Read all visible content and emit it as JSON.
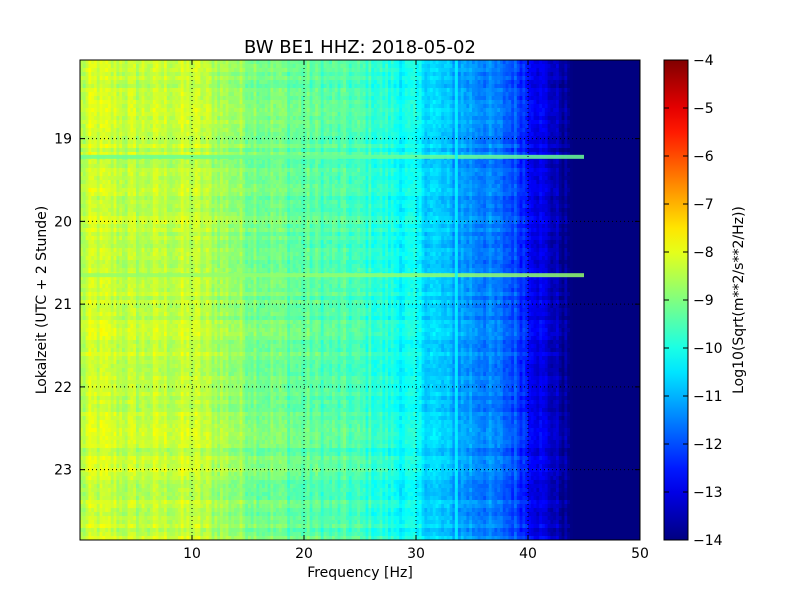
{
  "chart_data": {
    "type": "heatmap",
    "title": "BW BE1 HHZ: 2018-05-02",
    "xlabel": "Frequency [Hz]",
    "ylabel": "Lokalzeit (UTC + 2 Stunde)",
    "xlim": [
      0,
      50
    ],
    "ylim": [
      18.05,
      23.85
    ],
    "x_ticks": [
      {
        "value": 10,
        "label": "10"
      },
      {
        "value": 20,
        "label": "20"
      },
      {
        "value": 30,
        "label": "30"
      },
      {
        "value": 40,
        "label": "40"
      },
      {
        "value": 50,
        "label": "50"
      }
    ],
    "y_ticks": [
      {
        "value": 19,
        "label": "19"
      },
      {
        "value": 20,
        "label": "20"
      },
      {
        "value": 21,
        "label": "21"
      },
      {
        "value": 22,
        "label": "22"
      },
      {
        "value": 23,
        "label": "23"
      }
    ],
    "y_inverted": true,
    "grid": true,
    "colormap": "jet",
    "colorbar": {
      "label": "Log10(Sqrt(m**2/s**2/Hz))",
      "range": [
        -14,
        -4
      ],
      "ticks": [
        {
          "value": -4,
          "label": "−4"
        },
        {
          "value": -5,
          "label": "−5"
        },
        {
          "value": -6,
          "label": "−6"
        },
        {
          "value": -7,
          "label": "−7"
        },
        {
          "value": -8,
          "label": "−8"
        },
        {
          "value": -9,
          "label": "−9"
        },
        {
          "value": -10,
          "label": "−10"
        },
        {
          "value": -11,
          "label": "−11"
        },
        {
          "value": -12,
          "label": "−12"
        },
        {
          "value": -13,
          "label": "−13"
        },
        {
          "value": -14,
          "label": "−14"
        }
      ]
    },
    "spectral_profile": [
      {
        "frequency": 0,
        "value": -8.6
      },
      {
        "frequency": 1,
        "value": -8.2
      },
      {
        "frequency": 5,
        "value": -8.4
      },
      {
        "frequency": 10,
        "value": -8.3
      },
      {
        "frequency": 15,
        "value": -8.9
      },
      {
        "frequency": 20,
        "value": -9.3
      },
      {
        "frequency": 25,
        "value": -9.6
      },
      {
        "frequency": 30,
        "value": -10.3
      },
      {
        "frequency": 33,
        "value": -11.0
      },
      {
        "frequency": 36,
        "value": -11.4
      },
      {
        "frequency": 39,
        "value": -12.0
      },
      {
        "frequency": 41,
        "value": -12.9
      },
      {
        "frequency": 43,
        "value": -13.6
      },
      {
        "frequency": 44,
        "value": -14.0
      },
      {
        "frequency": 50,
        "value": -14.0
      }
    ],
    "horizontal_bands": [
      {
        "time": 19.22,
        "value": -9.2,
        "max_frequency": 45
      },
      {
        "time": 20.65,
        "value": -8.8,
        "max_frequency": 45
      }
    ],
    "vertical_lines": [
      {
        "frequency": 33.6,
        "value": -10.3
      }
    ]
  }
}
